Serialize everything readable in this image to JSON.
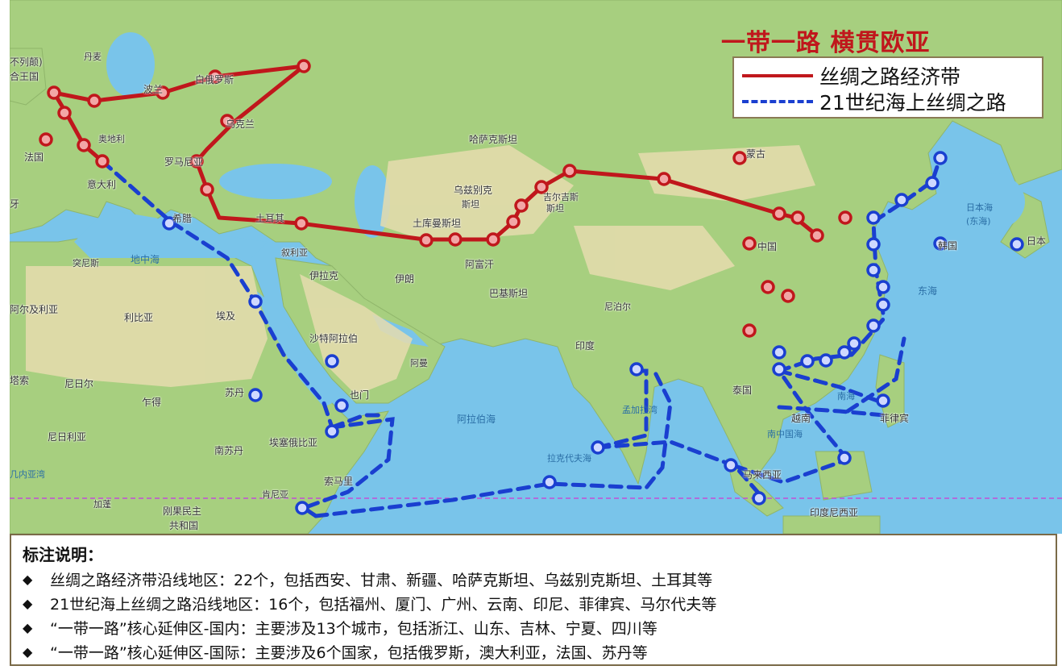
{
  "title": "一带一路  横贯欧亚",
  "legend": {
    "land_route": "丝绸之路经济带",
    "sea_route": "21世纪海上丝绸之路",
    "land_color": "#c0171c",
    "sea_color": "#1a3fd0"
  },
  "map_labels": {
    "top_left_1": "不列颠)",
    "top_left_2": "合王国",
    "danmai": "丹麦",
    "bolan": "波兰",
    "baieluosi": "白俄罗斯",
    "wukelan": "乌克兰",
    "faguo": "法国",
    "aodili": "奥地利",
    "luomaniya": "罗马尼亚",
    "yidali": "意大利",
    "xila": "希腊",
    "tuerqi": "土耳其",
    "ya": "牙",
    "tunisi": "突尼斯",
    "dizhonghai": "地中海",
    "xuliya": "叙利亚",
    "yilake": "伊拉克",
    "yilang": "伊朗",
    "aerjiliya": "阿尔及利亚",
    "libiya": "利比亚",
    "aiji": "埃及",
    "shatealabo": "沙特阿拉伯",
    "ameng": "阿曼",
    "yemen": "也门",
    "sudan": "苏丹",
    "zhade": "乍得",
    "niriger": "尼日尔",
    "nirili": "尼日利亚",
    "xiesu": "塔索",
    "nansudan": "南苏丹",
    "aisaiebiya": "埃塞俄比亚",
    "suomali": "索马里",
    "kenniya": "肯尼亚",
    "jineiyawan": "几内亚湾",
    "jiapeng": "加蓬",
    "gangguo_1": "刚果民主",
    "gangguo_2": "共和国",
    "hasakesitan": "哈萨克斯坦",
    "wuzibieke": "乌兹别克",
    "sitan": "斯坦",
    "jierjisi_1": "吉尔吉斯",
    "jierjisi_2": "斯坦",
    "tukuman": "土库曼斯坦",
    "afuhan": "阿富汗",
    "bajisitan": "巴基斯坦",
    "niboer": "尼泊尔",
    "yindu": "印度",
    "alabohai": "阿拉伯海",
    "mengjialawan": "孟加拉湾",
    "lakedaifu": "拉克代夫海",
    "menggu": "蒙古",
    "zhongguo": "中国",
    "taiguo": "泰国",
    "yuenan": "越南",
    "nanhai": "南海",
    "feilvbin": "菲律宾",
    "malaixiya": "马来西亚",
    "yindunixiya": "印度尼西亚",
    "nanzhongguohai": "南中国海",
    "dongha": "东海",
    "riben_hai_1": "日本海",
    "riben_hai_2": "(东海)",
    "hanguo": "韩国",
    "riben": "日本"
  },
  "notes": {
    "heading": "标注说明：",
    "items": [
      "丝绸之路经济带沿线地区：22个，包括西安、甘肃、新疆、哈萨克斯坦、乌兹别克斯坦、土耳其等",
      "21世纪海上丝绸之路沿线地区：16个，包括福州、厦门、广州、云南、印尼、菲律宾、马尔代夫等",
      "“一带一路”核心延伸区-国内：主要涉及13个城市，包括浙江、山东、吉林、宁夏、四川等",
      "“一带一路”核心延伸区-国际：主要涉及6个国家，包括俄罗斯，澳大利亚，法国、苏丹等"
    ],
    "bullet": "◆"
  }
}
